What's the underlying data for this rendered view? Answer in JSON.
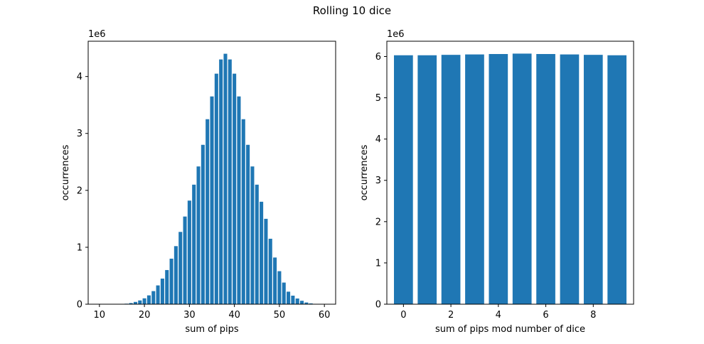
{
  "figure": {
    "title": "Rolling 10 dice"
  },
  "chart_data": [
    {
      "type": "bar",
      "bar_color": "#1f77b4",
      "xlabel": "sum of pips",
      "ylabel": "occurrences",
      "y_offset_label": "1e6",
      "x": [
        10,
        11,
        12,
        13,
        14,
        15,
        16,
        17,
        18,
        19,
        20,
        21,
        22,
        23,
        24,
        25,
        26,
        27,
        28,
        29,
        30,
        31,
        32,
        33,
        34,
        35,
        36,
        37,
        38,
        39,
        40,
        41,
        42,
        43,
        44,
        45,
        46,
        47,
        48,
        49,
        50,
        51,
        52,
        53,
        54,
        55,
        56,
        57,
        58,
        59,
        60
      ],
      "values": [
        1e-05,
        2e-05,
        0.0001,
        0.0004,
        0.0012,
        0.0035,
        0.009,
        0.02,
        0.04,
        0.066,
        0.103,
        0.155,
        0.23,
        0.33,
        0.45,
        0.6,
        0.8,
        1.02,
        1.27,
        1.54,
        1.82,
        2.1,
        2.42,
        2.8,
        3.25,
        3.65,
        4.05,
        4.3,
        4.4,
        4.3,
        4.05,
        3.65,
        3.25,
        2.8,
        2.42,
        2.1,
        1.8,
        1.5,
        1.15,
        0.82,
        0.58,
        0.38,
        0.22,
        0.15,
        0.1,
        0.06,
        0.03,
        0.014,
        0.006,
        0.002,
        0.0005
      ],
      "xlim": [
        7.5,
        62.5
      ],
      "ylim": [
        0,
        4.62
      ],
      "xticks": [
        10,
        20,
        30,
        40,
        50,
        60
      ],
      "yticks": [
        0,
        1,
        2,
        3,
        4
      ],
      "bar_width": 0.8
    },
    {
      "type": "bar",
      "bar_color": "#1f77b4",
      "xlabel": "sum of pips mod number of dice",
      "ylabel": "occurrences",
      "y_offset_label": "1e6",
      "x": [
        0,
        1,
        2,
        3,
        4,
        5,
        6,
        7,
        8,
        9
      ],
      "values": [
        6.03,
        6.03,
        6.04,
        6.05,
        6.06,
        6.07,
        6.06,
        6.05,
        6.04,
        6.03
      ],
      "xlim": [
        -0.7,
        9.7
      ],
      "ylim": [
        0,
        6.37
      ],
      "xticks": [
        0,
        2,
        4,
        6,
        8
      ],
      "yticks": [
        0,
        1,
        2,
        3,
        4,
        5,
        6
      ],
      "bar_width": 0.8
    }
  ]
}
